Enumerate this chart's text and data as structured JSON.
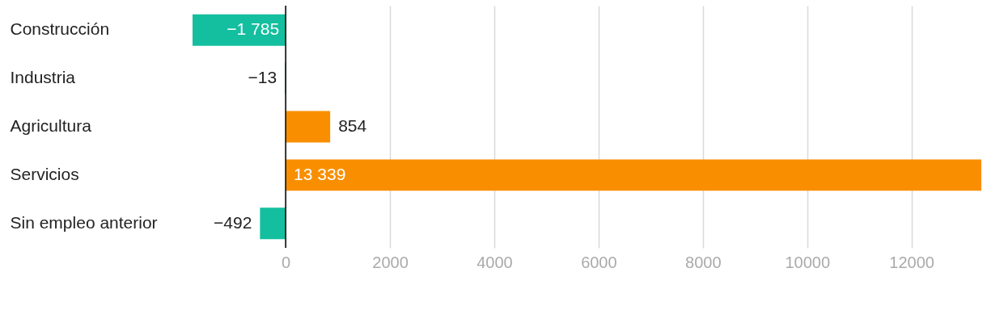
{
  "chart_data": {
    "type": "bar",
    "orientation": "horizontal",
    "categories": [
      "Construcción",
      "Industria",
      "Agricultura",
      "Servicios",
      "Sin empleo anterior"
    ],
    "values": [
      -1785,
      -13,
      854,
      13339,
      -492
    ],
    "colors": [
      "#13bf9e",
      "#13bf9e",
      "#f98f00",
      "#f98f00",
      "#13bf9e"
    ],
    "value_labels": [
      "−1 785",
      "−13",
      "854",
      "13 339",
      "−492"
    ],
    "xlim": [
      -1785,
      13339
    ],
    "xticks": [
      0,
      2000,
      4000,
      6000,
      8000,
      10000,
      12000
    ],
    "grid": "x",
    "ref_lines": [
      {
        "axis": "x",
        "value": 0,
        "color": "#000000"
      }
    ]
  }
}
